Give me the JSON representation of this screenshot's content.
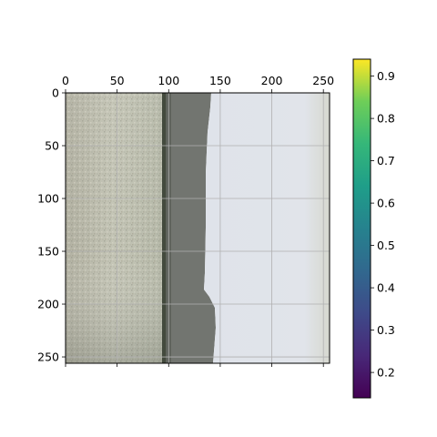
{
  "chart_data": [
    {
      "type": "heatmap",
      "title": "",
      "xlabel": "",
      "ylabel": "",
      "x_axis_position": "top",
      "xlim": [
        0,
        256
      ],
      "ylim": [
        256,
        0
      ],
      "x_ticks": [
        0,
        50,
        100,
        150,
        200,
        250
      ],
      "y_ticks": [
        0,
        50,
        100,
        150,
        200,
        250
      ],
      "x_tick_labels": [
        "0",
        "50",
        "100",
        "150",
        "200",
        "250"
      ],
      "y_tick_labels": [
        "0",
        "50",
        "100",
        "150",
        "200",
        "250"
      ],
      "grid": true,
      "image_description_regions": [
        {
          "name": "left-speckled-region",
          "x": [
            0,
            92
          ],
          "color": "#b8b8a8"
        },
        {
          "name": "thin-dark-stripe",
          "x": [
            92,
            95
          ],
          "color": "#444a3e"
        },
        {
          "name": "dark-band",
          "x": [
            95,
            133
          ],
          "color": "#6f726c"
        },
        {
          "name": "bright-region",
          "x": [
            133,
            256
          ],
          "color": "#e0e4ec"
        }
      ],
      "colorbar": {
        "colormap": "viridis",
        "vmin": 0.14,
        "vmax": 0.94,
        "ticks": [
          0.2,
          0.3,
          0.4,
          0.5,
          0.6,
          0.7,
          0.8,
          0.9
        ],
        "tick_labels": [
          "0.2",
          "0.3",
          "0.4",
          "0.5",
          "0.6",
          "0.7",
          "0.8",
          "0.9"
        ]
      }
    }
  ]
}
